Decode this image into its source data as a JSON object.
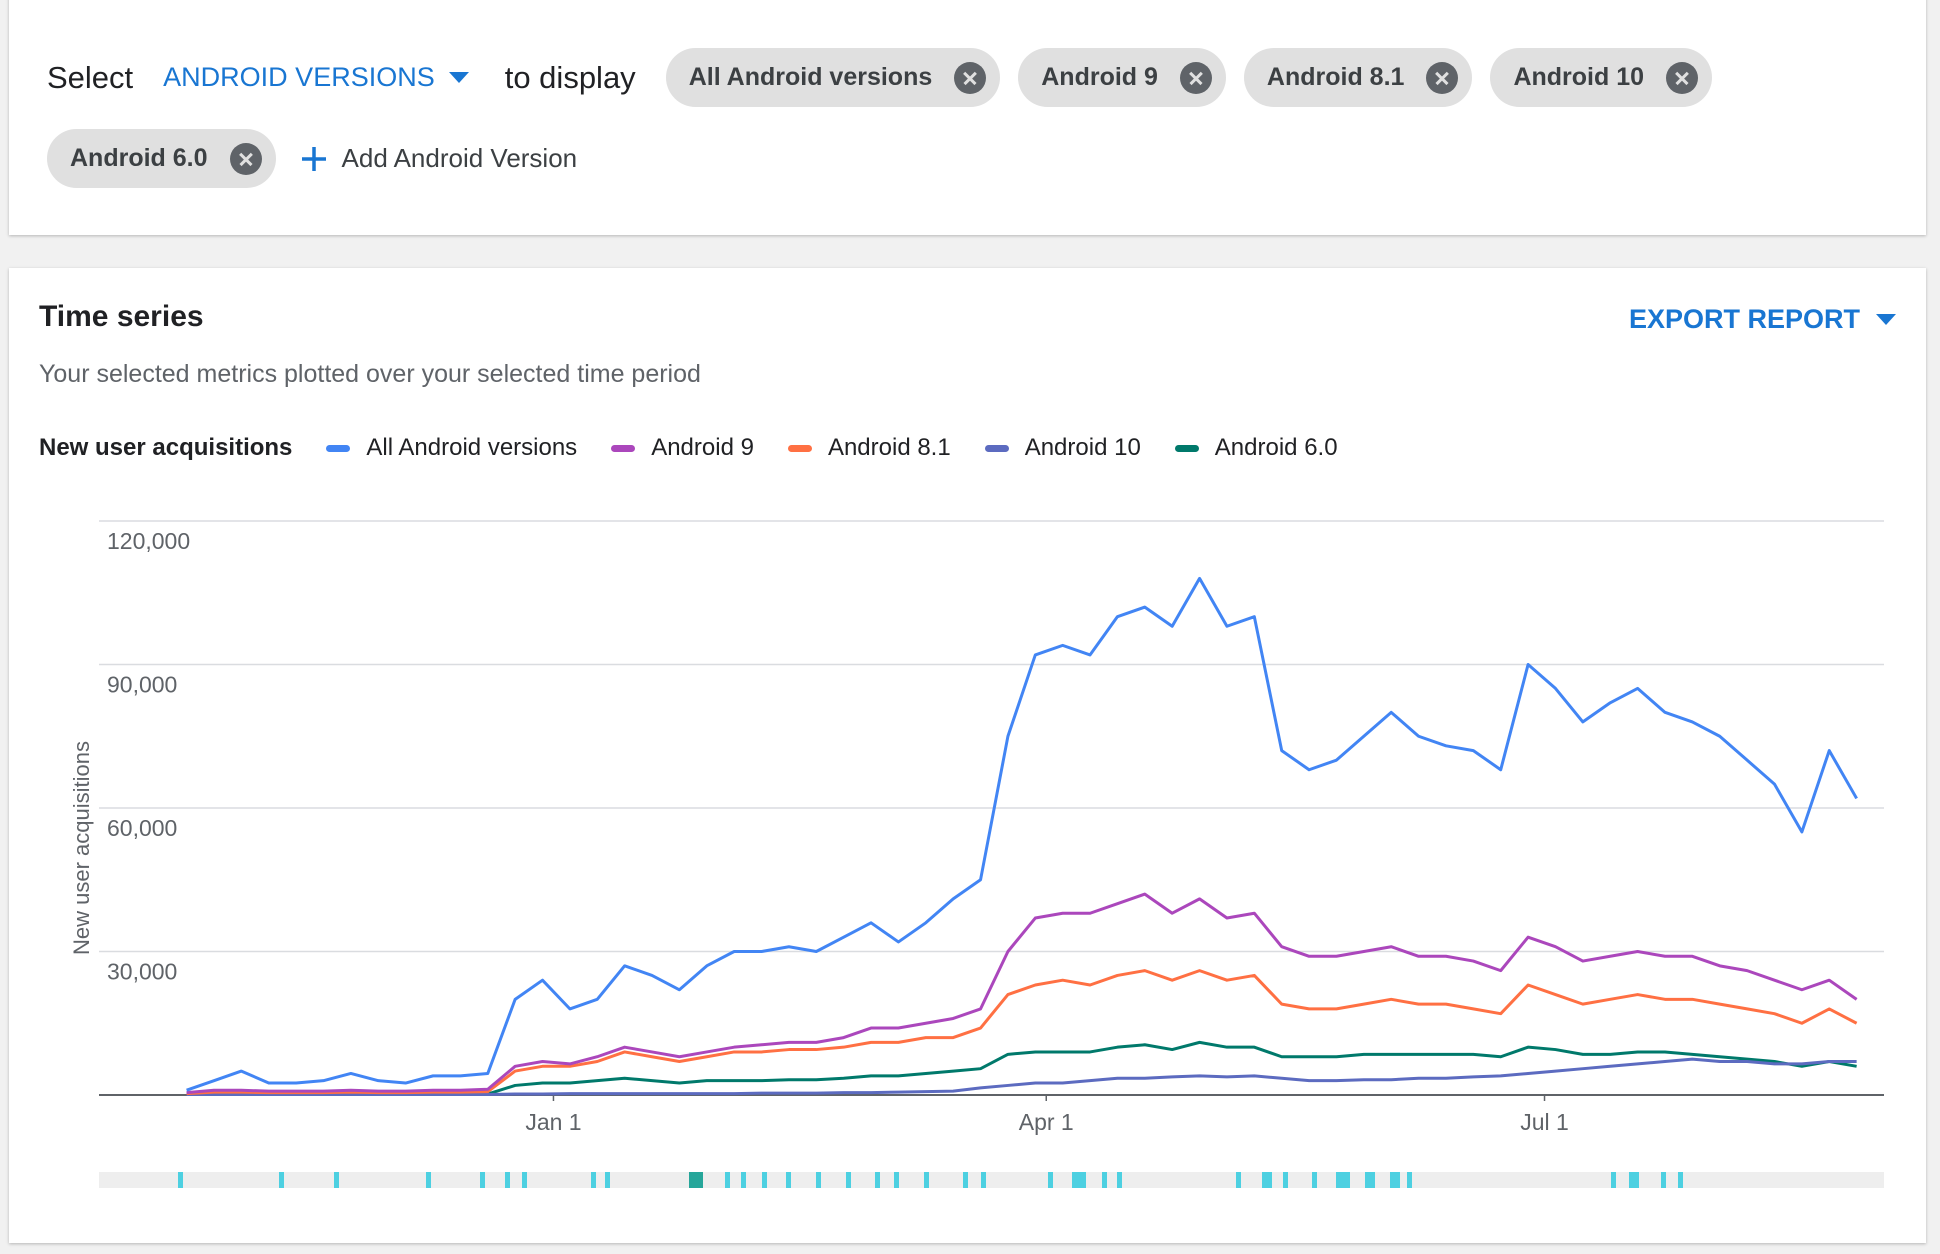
{
  "header": {
    "select_label": "Select",
    "dropdown": "ANDROID VERSIONS",
    "suffix": "to display",
    "chips": [
      "All Android versions",
      "Android 9",
      "Android 8.1",
      "Android 10",
      "Android 6.0"
    ],
    "add_label": "Add Android Version"
  },
  "chart_data": {
    "type": "line",
    "title": "Time series",
    "subtitle": "Your selected metrics plotted over your selected time period",
    "export_label": "EXPORT REPORT",
    "legend_title": "New user acquisitions",
    "y_label": "New user acquisitions",
    "x": [
      -67,
      -62,
      -57,
      -52,
      -47,
      -42,
      -37,
      -32,
      -27,
      -22,
      -17,
      -12,
      -7,
      -2,
      3,
      8,
      13,
      18,
      23,
      28,
      33,
      38,
      43,
      48,
      53,
      58,
      63,
      68,
      73,
      78,
      83,
      88,
      93,
      98,
      103,
      108,
      113,
      118,
      123,
      128,
      133,
      138,
      143,
      148,
      153,
      158,
      163,
      168,
      173,
      178,
      183,
      188,
      193,
      198,
      203,
      208,
      213,
      218,
      223,
      228,
      233,
      238
    ],
    "xlim": [
      -83,
      243
    ],
    "xticks": [
      {
        "value": 0,
        "label": "Jan 1"
      },
      {
        "value": 90,
        "label": "Apr 1"
      },
      {
        "value": 181,
        "label": "Jul 1"
      }
    ],
    "ylim": [
      0,
      120000
    ],
    "yticks": [
      {
        "value": 30000,
        "label": "30,000"
      },
      {
        "value": 60000,
        "label": "60,000"
      },
      {
        "value": 90000,
        "label": "90,000"
      },
      {
        "value": 120000,
        "label": "120,000"
      }
    ],
    "grid": true,
    "series": [
      {
        "name": "All Android versions",
        "color": "#4285f4",
        "values": [
          1000,
          3000,
          5000,
          2500,
          2500,
          3000,
          4500,
          3000,
          2500,
          4000,
          4000,
          4500,
          20000,
          24000,
          18000,
          20000,
          27000,
          25000,
          22000,
          27000,
          30000,
          30000,
          31000,
          30000,
          33000,
          36000,
          32000,
          36000,
          41000,
          45000,
          75000,
          92000,
          94000,
          92000,
          100000,
          102000,
          98000,
          108000,
          98000,
          100000,
          72000,
          68000,
          70000,
          75000,
          80000,
          75000,
          73000,
          72000,
          68000,
          90000,
          85000,
          78000,
          82000,
          85000,
          80000,
          78000,
          75000,
          70000,
          65000,
          55000,
          72000,
          62000
        ]
      },
      {
        "name": "Android 9",
        "color": "#ab47bc",
        "values": [
          500,
          1000,
          1000,
          800,
          800,
          800,
          1000,
          800,
          800,
          1000,
          1000,
          1200,
          6000,
          7000,
          6500,
          8000,
          10000,
          9000,
          8000,
          9000,
          10000,
          10500,
          11000,
          11000,
          12000,
          14000,
          14000,
          15000,
          16000,
          18000,
          30000,
          37000,
          38000,
          38000,
          40000,
          42000,
          38000,
          41000,
          37000,
          38000,
          31000,
          29000,
          29000,
          30000,
          31000,
          29000,
          29000,
          28000,
          26000,
          33000,
          31000,
          28000,
          29000,
          30000,
          29000,
          29000,
          27000,
          26000,
          24000,
          22000,
          24000,
          20000
        ]
      },
      {
        "name": "Android 8.1",
        "color": "#ff7043",
        "values": [
          300,
          600,
          600,
          500,
          500,
          500,
          600,
          500,
          500,
          600,
          600,
          700,
          5000,
          6000,
          6000,
          7000,
          9000,
          8000,
          7000,
          8000,
          9000,
          9000,
          9500,
          9500,
          10000,
          11000,
          11000,
          12000,
          12000,
          14000,
          21000,
          23000,
          24000,
          23000,
          25000,
          26000,
          24000,
          26000,
          24000,
          25000,
          19000,
          18000,
          18000,
          19000,
          20000,
          19000,
          19000,
          18000,
          17000,
          23000,
          21000,
          19000,
          20000,
          21000,
          20000,
          20000,
          19000,
          18000,
          17000,
          15000,
          18000,
          15000
        ]
      },
      {
        "name": "Android 10",
        "color": "#5c6bc0",
        "values": [
          100,
          100,
          100,
          100,
          100,
          100,
          100,
          100,
          100,
          100,
          100,
          100,
          200,
          200,
          300,
          300,
          300,
          300,
          300,
          300,
          300,
          400,
          400,
          400,
          500,
          500,
          600,
          700,
          800,
          1500,
          2000,
          2500,
          2500,
          3000,
          3500,
          3500,
          3800,
          4000,
          3800,
          4000,
          3500,
          3000,
          3000,
          3200,
          3200,
          3500,
          3500,
          3800,
          4000,
          4500,
          5000,
          5500,
          6000,
          6500,
          7000,
          7500,
          7000,
          7000,
          6500,
          6500,
          7000,
          7000
        ]
      },
      {
        "name": "Android 6.0",
        "color": "#00796b",
        "values": [
          200,
          200,
          200,
          200,
          200,
          200,
          200,
          200,
          200,
          200,
          200,
          200,
          2000,
          2500,
          2500,
          3000,
          3500,
          3000,
          2500,
          3000,
          3000,
          3000,
          3200,
          3200,
          3500,
          4000,
          4000,
          4500,
          5000,
          5500,
          8500,
          9000,
          9000,
          9000,
          10000,
          10500,
          9500,
          11000,
          10000,
          10000,
          8000,
          8000,
          8000,
          8500,
          8500,
          8500,
          8500,
          8500,
          8000,
          10000,
          9500,
          8500,
          8500,
          9000,
          9000,
          8500,
          8000,
          7500,
          7000,
          6000,
          7000,
          6000
        ]
      }
    ]
  }
}
